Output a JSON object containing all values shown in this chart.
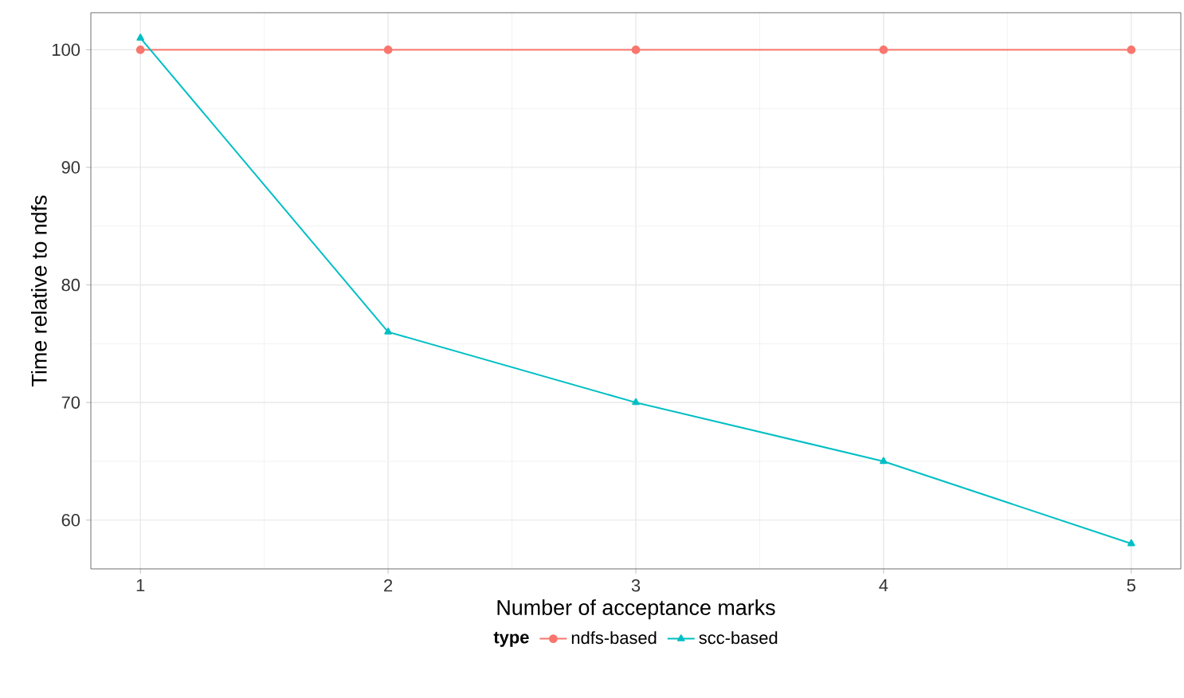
{
  "chart_data": {
    "type": "line",
    "xlabel": "Number of acceptance marks",
    "ylabel": "Time relative to ndfs",
    "legend_title": "type",
    "x": [
      1,
      2,
      3,
      4,
      5
    ],
    "series": [
      {
        "name": "ndfs-based",
        "color": "#f8766d",
        "marker": "circle",
        "values": [
          100,
          100,
          100,
          100,
          100
        ]
      },
      {
        "name": "scc-based",
        "color": "#00bfc4",
        "marker": "triangle",
        "values": [
          101,
          76,
          70,
          65,
          58
        ]
      }
    ],
    "xlim": [
      0.8,
      5.2
    ],
    "ylim": [
      55.85,
      103.15
    ],
    "xticks": [
      1,
      2,
      3,
      4,
      5
    ],
    "yticks": [
      60,
      70,
      80,
      90,
      100
    ],
    "grid": true,
    "legend": "bottom"
  }
}
